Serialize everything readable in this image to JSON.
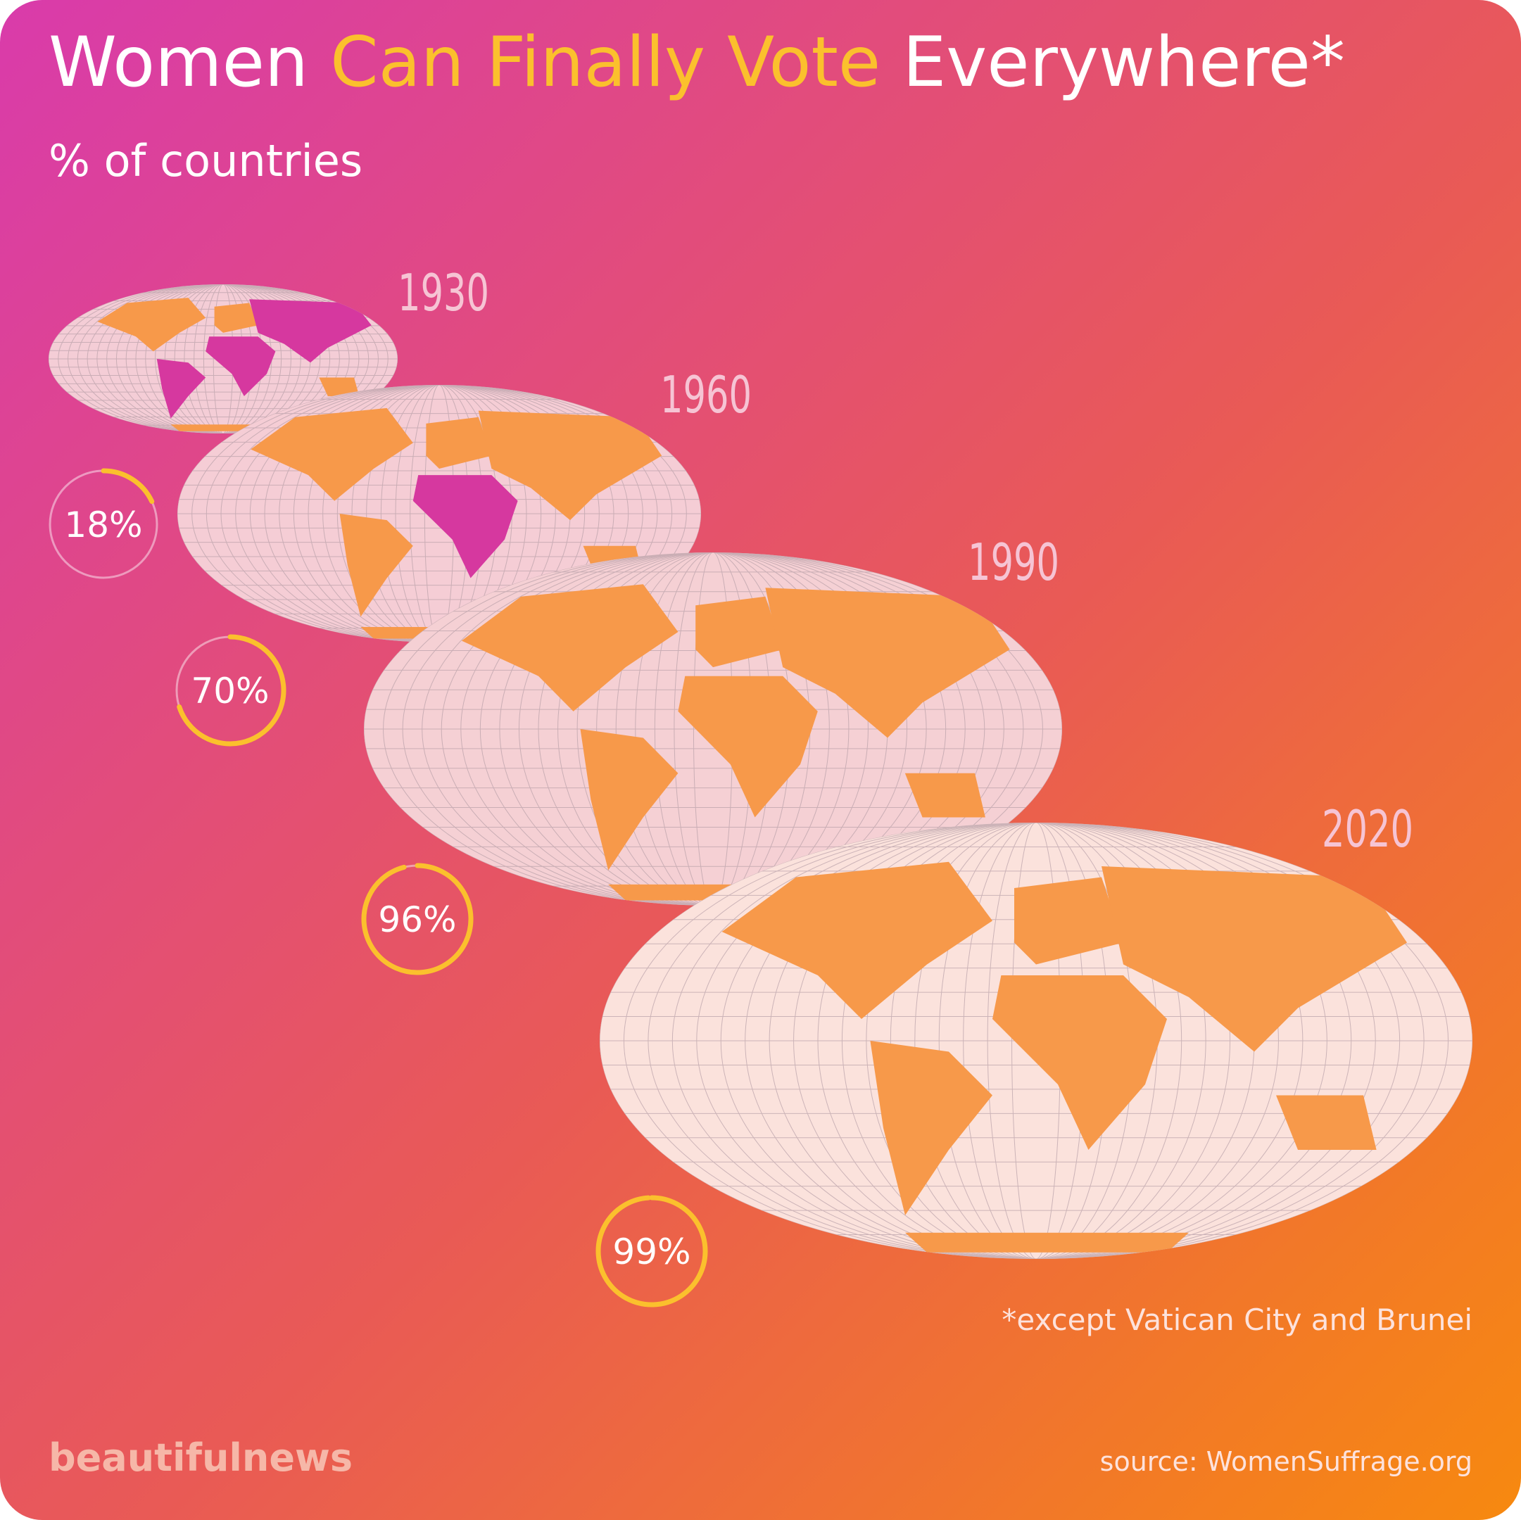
{
  "chart_data": {
    "type": "ring",
    "title_parts": [
      "Women",
      "Can Finally Vote",
      "Everywhere*"
    ],
    "subtitle": "% of countries",
    "categories": [
      "1930",
      "1960",
      "1990",
      "2020"
    ],
    "values": [
      18,
      70,
      96,
      99
    ],
    "value_labels": [
      "18%",
      "70%",
      "96%",
      "99%"
    ],
    "ylim": [
      0,
      100
    ],
    "color": "#fbc02d",
    "footnote": "*except Vatican City and Brunei",
    "source": "source: WomenSuffrage.org",
    "brand": "beautifulnews"
  }
}
